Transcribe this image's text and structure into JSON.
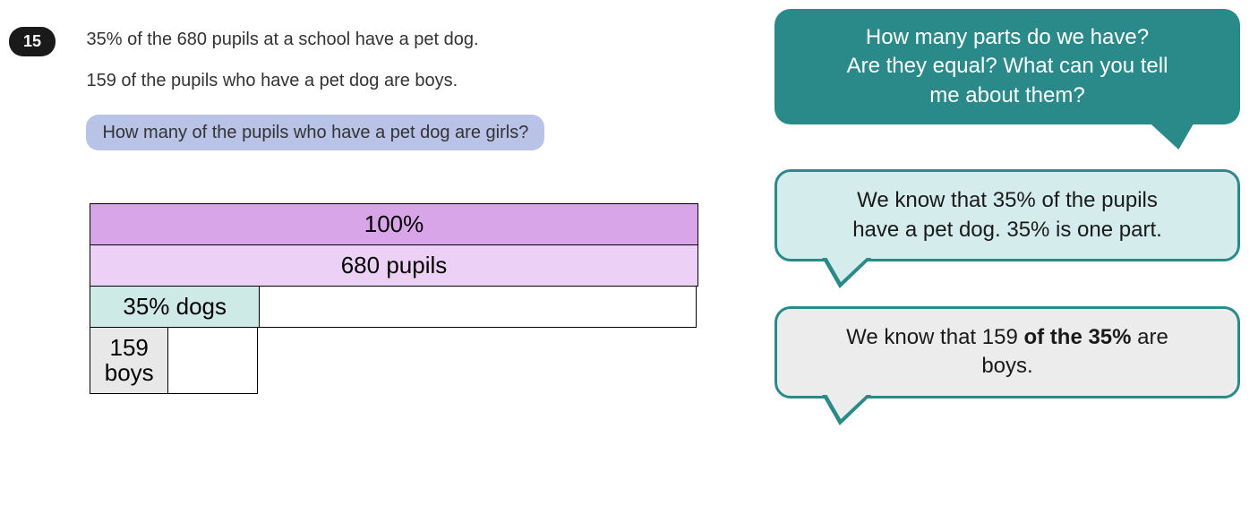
{
  "question": {
    "number": "15",
    "line1": "35% of the 680 pupils at a school have a pet dog.",
    "line2": "159 of the pupils who have a pet dog are boys.",
    "prompt": "How many of the pupils who have a pet dog are girls?"
  },
  "barModel": {
    "row1": {
      "label": "100%",
      "color": "#d8a6e8",
      "widthPct": 100
    },
    "row2": {
      "label": "680 pupils",
      "color": "#edd0f5",
      "widthPct": 100
    },
    "row3": {
      "part1": {
        "label": "35% dogs",
        "color": "#cdeae6",
        "widthPct": 28
      },
      "part2": {
        "label": "",
        "color": "#ffffff",
        "widthPct": 72
      }
    },
    "row4": {
      "part1": {
        "label": "159 boys",
        "color": "#e8e8e8",
        "widthPct": 13
      },
      "part2": {
        "label": "",
        "color": "#ffffff",
        "widthPct": 15
      },
      "part3": {
        "label": "",
        "color": "#ffffff",
        "widthPct": 72
      }
    },
    "borderColor": "#000000",
    "fontSize": 26
  },
  "bubbles": {
    "b1": {
      "line1": "How many parts do we have?",
      "line2": "Are they equal? What can you tell",
      "line3": "me about them?",
      "bg": "#2a8a8a",
      "fg": "#ffffff"
    },
    "b2": {
      "line1": "We know that 35% of the pupils",
      "line2": "have a pet dog. 35% is one part.",
      "bg": "#d4ecec",
      "fg": "#1a1a1a",
      "border": "#2a8a8a"
    },
    "b3": {
      "prefix": "We know that 159 ",
      "bold": "of the 35%",
      "suffix": " are",
      "line2": "boys.",
      "bg": "#ececec",
      "fg": "#1a1a1a",
      "border": "#2a8a8a"
    }
  }
}
